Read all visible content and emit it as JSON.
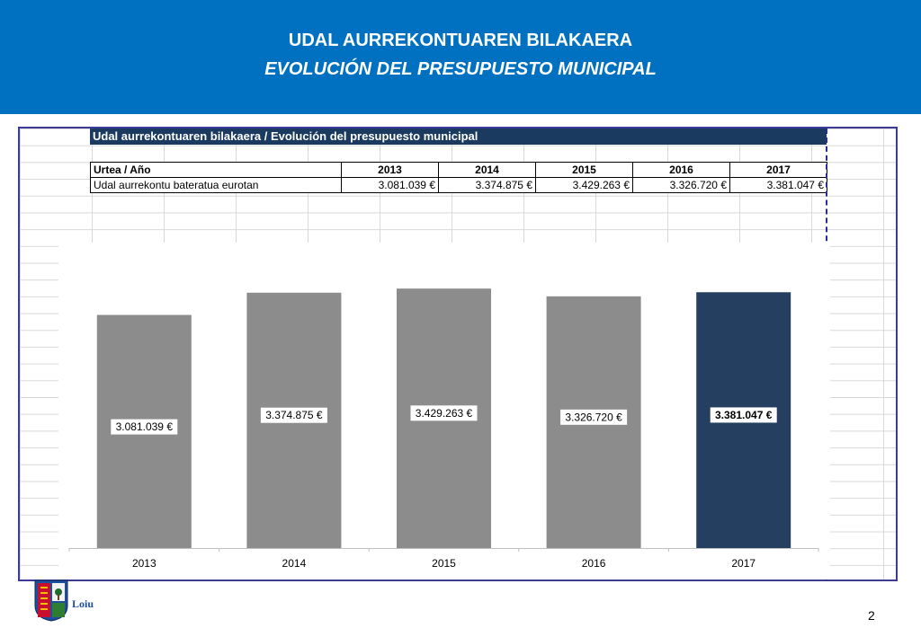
{
  "header": {
    "title": "UDAL AURREKONTUAREN BILAKAERA",
    "subtitle": "EVOLUCIÓN DEL PRESUPUESTO MUNICIPAL"
  },
  "table": {
    "title": "Udal aurrekontuaren bilakaera / Evolución del presupuesto  municipal",
    "header_label": "Urtea / Año",
    "years": [
      "2013",
      "2014",
      "2015",
      "2016",
      "2017"
    ],
    "row_label": "Udal aurrekontu bateratua eurotan",
    "values": [
      "3.081.039 €",
      "3.374.875 €",
      "3.429.263 €",
      "3.326.720 €",
      "3.381.047 €"
    ]
  },
  "chart_data": {
    "type": "bar",
    "categories": [
      "2013",
      "2014",
      "2015",
      "2016",
      "2017"
    ],
    "values": [
      3081039,
      3374875,
      3429263,
      3326720,
      3381047
    ],
    "labels": [
      "3.081.039 €",
      "3.374.875 €",
      "3.429.263 €",
      "3.326.720 €",
      "3.381.047 €"
    ],
    "colors": [
      "#8c8c8c",
      "#8c8c8c",
      "#8c8c8c",
      "#8c8c8c",
      "#243f60"
    ],
    "title": "",
    "xlabel": "",
    "ylabel": "",
    "ylim": [
      0,
      3681039
    ],
    "grid": false,
    "legend": "none"
  },
  "footer": {
    "logo_text": "Loiu",
    "page_number": "2"
  }
}
